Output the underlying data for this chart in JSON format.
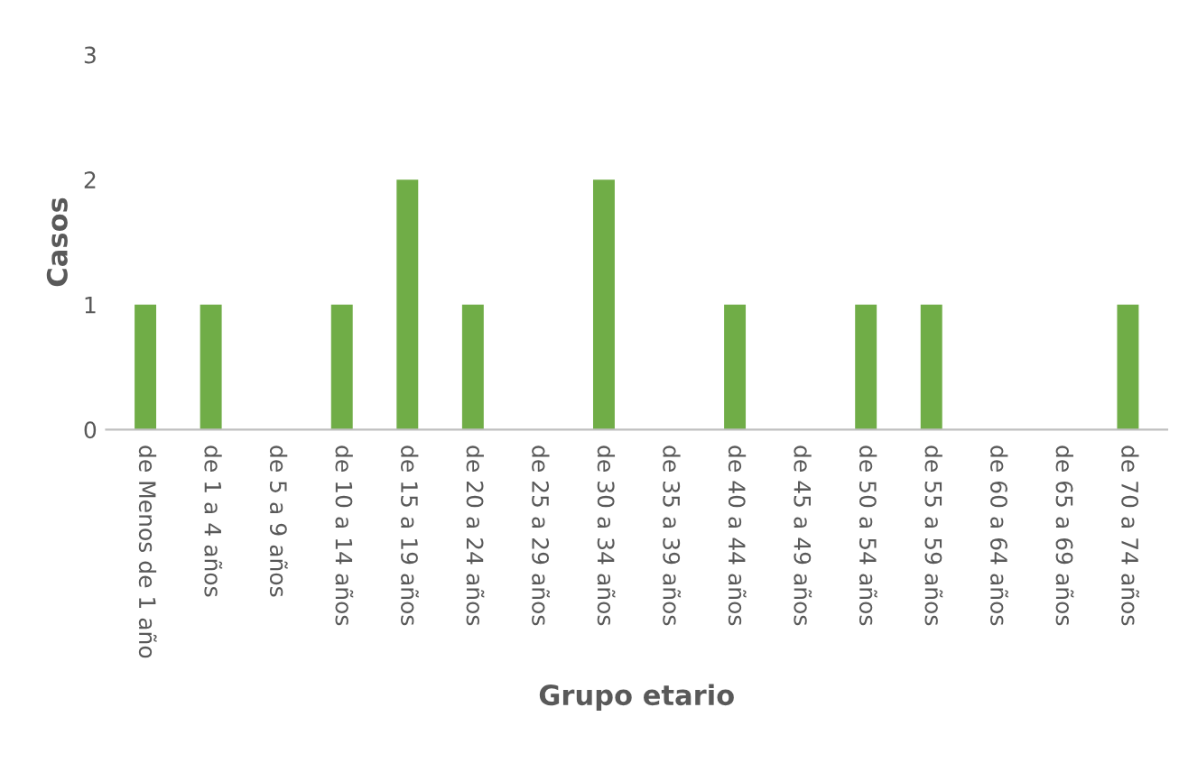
{
  "chart_data": {
    "type": "bar",
    "xlabel": "Grupo etario",
    "ylabel": "Casos",
    "categories": [
      "de Menos de 1 año",
      "de 1 a 4 años",
      "de 5 a 9 años",
      "de 10 a 14 años",
      "de 15 a 19 años",
      "de 20 a 24 años",
      "de 25 a 29 años",
      "de 30 a 34 años",
      "de 35 a 39 años",
      "de 40 a 44 años",
      "de 45 a 49 años",
      "de 50 a 54 años",
      "de 55 a 59 años",
      "de 60 a 64 años",
      "de 65 a 69 años",
      "de 70 a 74 años"
    ],
    "values": [
      1,
      1,
      0,
      1,
      2,
      1,
      0,
      2,
      0,
      1,
      0,
      1,
      1,
      0,
      0,
      1
    ],
    "color": "#70ad47",
    "ylim": [
      0,
      3
    ],
    "yticks": [
      0,
      1,
      2,
      3
    ],
    "grid": false,
    "legend": false
  }
}
